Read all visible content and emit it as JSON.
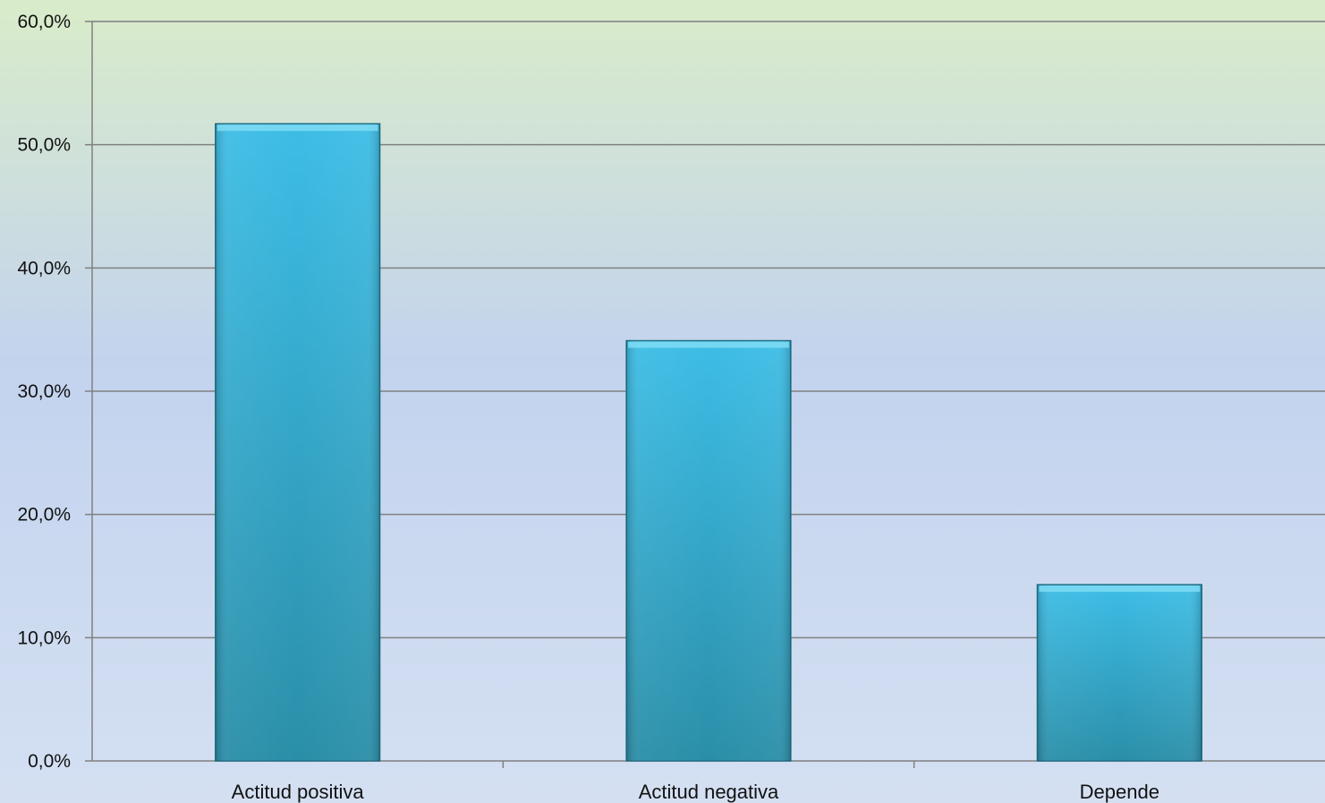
{
  "chart_data": {
    "type": "bar",
    "title": "",
    "xlabel": "",
    "ylabel": "",
    "categories": [
      "Actitud positiva",
      "Actitud negativa",
      "Depende"
    ],
    "values": [
      51.7,
      34.1,
      14.3
    ],
    "ylim": [
      0,
      60
    ],
    "yticks": [
      0,
      10,
      20,
      30,
      40,
      50,
      60
    ],
    "ytick_labels": [
      "0,0%",
      "10,0%",
      "20,0%",
      "30,0%",
      "40,0%",
      "50,0%",
      "60,0%"
    ],
    "value_format": "percent",
    "grid": true,
    "legend": "none",
    "colors": {
      "bar_top": "#3dbde6",
      "bar_bottom": "#2a8ea8",
      "bar_edge": "#1f6f85",
      "gridline": "#808080",
      "axis": "#808080",
      "background_top": "#d9ecc9",
      "background_mid": "#c3d3ee",
      "background_bottom": "#d4e0f2"
    }
  }
}
